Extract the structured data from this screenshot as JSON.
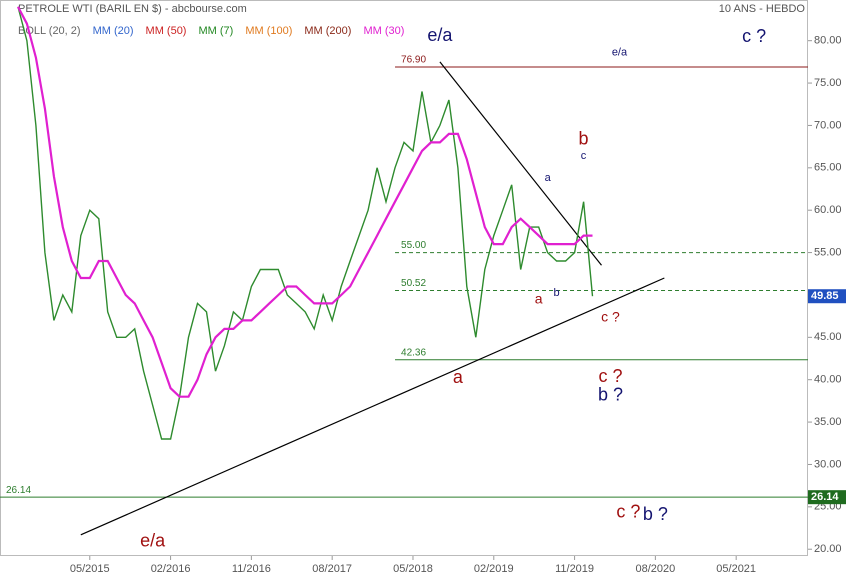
{
  "chart_data": {
    "type": "line",
    "title": "PETROLE WTI (BARIL EN $) - abcbourse.com",
    "subtitle": "10 ANS - HEBDO",
    "legend": [
      {
        "name": "BOLL (20, 2)",
        "color": "#666666"
      },
      {
        "name": "MM (20)",
        "color": "#3366cc"
      },
      {
        "name": "MM (50)",
        "color": "#cc2222"
      },
      {
        "name": "MM (7)",
        "color": "#228822"
      },
      {
        "name": "MM (100)",
        "color": "#e07a1f"
      },
      {
        "name": "MM (200)",
        "color": "#8b2a1a"
      },
      {
        "name": "MM (30)",
        "color": "#e020d0"
      }
    ],
    "x": [
      "09/2014",
      "10/2014",
      "11/2014",
      "12/2014",
      "01/2015",
      "02/2015",
      "03/2015",
      "04/2015",
      "05/2015",
      "06/2015",
      "07/2015",
      "08/2015",
      "09/2015",
      "10/2015",
      "11/2015",
      "12/2015",
      "01/2016",
      "02/2016",
      "03/2016",
      "04/2016",
      "05/2016",
      "06/2016",
      "07/2016",
      "08/2016",
      "09/2016",
      "10/2016",
      "11/2016",
      "12/2016",
      "01/2017",
      "02/2017",
      "03/2017",
      "04/2017",
      "05/2017",
      "06/2017",
      "07/2017",
      "08/2017",
      "09/2017",
      "10/2017",
      "11/2017",
      "12/2017",
      "01/2018",
      "02/2018",
      "03/2018",
      "04/2018",
      "05/2018",
      "06/2018",
      "07/2018",
      "08/2018",
      "09/2018",
      "10/2018",
      "11/2018",
      "12/2018",
      "01/2019",
      "02/2019",
      "03/2019",
      "04/2019",
      "05/2019",
      "06/2019",
      "07/2019",
      "08/2019",
      "09/2019",
      "10/2019",
      "11/2019",
      "12/2019",
      "01/2020"
    ],
    "series": [
      {
        "color": "#2e8b2e",
        "values": [
          84,
          80,
          70,
          55,
          47,
          50,
          48,
          57,
          60,
          59,
          48,
          45,
          45,
          46,
          41,
          37,
          33,
          33,
          38,
          45,
          49,
          48,
          41,
          44,
          48,
          47,
          51,
          53,
          53,
          53,
          50,
          49,
          48,
          46,
          50,
          47,
          51,
          54,
          57,
          60,
          65,
          61,
          65,
          68,
          67,
          74,
          68,
          70,
          73,
          65,
          51,
          45,
          53,
          57,
          60,
          63,
          53,
          58,
          58,
          55,
          54,
          54,
          55,
          61,
          49.85
        ]
      },
      {
        "color": "#e020d0",
        "values": [
          84,
          82,
          78,
          72,
          64,
          58,
          54,
          52,
          52,
          54,
          54,
          52,
          50,
          49,
          47,
          45,
          42,
          39,
          38,
          38,
          40,
          43,
          45,
          46,
          46,
          47,
          47,
          48,
          49,
          50,
          51,
          51,
          50,
          49,
          49,
          49,
          50,
          51,
          53,
          55,
          57,
          59,
          61,
          63,
          65,
          67,
          68,
          68,
          69,
          69,
          66,
          62,
          58,
          56,
          56,
          58,
          59,
          58,
          57,
          56,
          56,
          56,
          56,
          57,
          57
        ]
      }
    ],
    "xlim": [
      "07/2014",
      "01/2022"
    ],
    "xticks": [
      "05/2015",
      "02/2016",
      "11/2016",
      "08/2017",
      "05/2018",
      "02/2019",
      "11/2019",
      "08/2020",
      "05/2021"
    ],
    "ylim": [
      19.2,
      84.8
    ],
    "yticks": [
      {
        "value": 20,
        "label": "20.00"
      },
      {
        "value": 25,
        "label": "25.00"
      },
      {
        "value": 30,
        "label": "30.00"
      },
      {
        "value": 35,
        "label": "35.00"
      },
      {
        "value": 40,
        "label": "40.00"
      },
      {
        "value": 45,
        "label": "45.00"
      },
      {
        "value": 50,
        "label": "50.00"
      },
      {
        "value": 55,
        "label": "55.00"
      },
      {
        "value": 60,
        "label": "60.00"
      },
      {
        "value": 65,
        "label": "65.00"
      },
      {
        "value": 70,
        "label": "70.00"
      },
      {
        "value": 75,
        "label": "75.00"
      },
      {
        "value": 80,
        "label": "80.00"
      }
    ],
    "levels": [
      {
        "value": 76.9,
        "label": "76.90",
        "color": "#8b1a1a",
        "dashed": false,
        "from": "03/2018"
      },
      {
        "value": 55,
        "label": "55.00",
        "color": "#2e7d2e",
        "dashed": true,
        "from": "03/2018"
      },
      {
        "value": 50.52,
        "label": "50.52",
        "color": "#2e7d2e",
        "dashed": true,
        "from": "03/2018"
      },
      {
        "value": 42.36,
        "label": "42.36",
        "color": "#2e7d2e",
        "dashed": false,
        "from": "03/2018"
      },
      {
        "value": 26.14,
        "label": "26.14",
        "color": "#2e7d2e",
        "dashed": false,
        "from": "07/2014",
        "badge": true
      }
    ],
    "last": 49.85,
    "trendlines": [
      {
        "from": [
          "04/2015",
          21.7
        ],
        "to": [
          "09/2020",
          52.0
        ]
      },
      {
        "from": [
          "08/2018",
          77.5
        ],
        "to": [
          "02/2020",
          53.5
        ]
      }
    ],
    "annotations": [
      {
        "text": "e/a",
        "x": "12/2015",
        "y": 20.9,
        "color": "#a01010",
        "emphasis": "large"
      },
      {
        "text": "e/a",
        "x": "08/2018",
        "y": 80.5,
        "color": "#141470",
        "emphasis": "large"
      },
      {
        "text": "e/a",
        "x": "04/2020",
        "y": 78.6,
        "color": "#141470",
        "emphasis": "small"
      },
      {
        "text": "c ?",
        "x": "07/2021",
        "y": 80.4,
        "color": "#141470",
        "emphasis": "large"
      },
      {
        "text": "b",
        "x": "12/2019",
        "y": 68.3,
        "color": "#a01010",
        "emphasis": "large"
      },
      {
        "text": "c",
        "x": "12/2019",
        "y": 66.4,
        "color": "#141470",
        "emphasis": "small"
      },
      {
        "text": "a",
        "x": "08/2019",
        "y": 63.8,
        "color": "#141470",
        "emphasis": "small"
      },
      {
        "text": "a",
        "x": "07/2019",
        "y": 49.4,
        "color": "#a01010",
        "emphasis": "medium"
      },
      {
        "text": "b",
        "x": "09/2019",
        "y": 50.2,
        "color": "#141470",
        "emphasis": "small"
      },
      {
        "text": "c ?",
        "x": "03/2020",
        "y": 47.3,
        "color": "#a01010",
        "emphasis": "medium"
      },
      {
        "text": "a",
        "x": "10/2018",
        "y": 40.2,
        "color": "#a01010",
        "emphasis": "large"
      },
      {
        "text": "c ?",
        "x": "03/2020",
        "y": 40.3,
        "color": "#a01010",
        "emphasis": "large"
      },
      {
        "text": "b ?",
        "x": "03/2020",
        "y": 38.1,
        "color": "#141470",
        "emphasis": "large"
      },
      {
        "text": "c ?",
        "x": "05/2020",
        "y": 24.3,
        "color": "#a01010",
        "emphasis": "large"
      },
      {
        "text": "b ?",
        "x": "08/2020",
        "y": 24.0,
        "color": "#141470",
        "emphasis": "large"
      }
    ]
  }
}
